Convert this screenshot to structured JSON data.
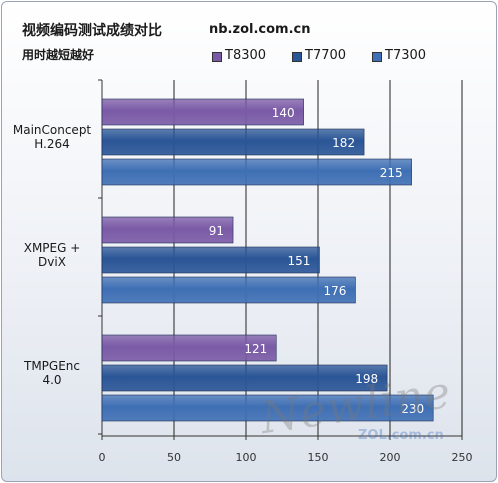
{
  "header": {
    "title": "视频编码测试成绩对比",
    "site": "nb.zol.com.cn",
    "subtitle": "用时越短越好"
  },
  "watermark": {
    "text": "Newline",
    "site": "ZOL.com.cn"
  },
  "colors": {
    "T8300": "#7a5aa6",
    "T7700": "#2a5596",
    "T7300": "#3f6fb4",
    "axis": "#333333",
    "grid": "#222222"
  },
  "chart_data": {
    "type": "bar",
    "orientation": "horizontal",
    "categories": [
      "MainConcept H.264",
      "XMPEG + DviX",
      "TMPGEnc 4.0"
    ],
    "category_lines": [
      [
        "MainConcept",
        "H.264"
      ],
      [
        "XMPEG +",
        "DviX"
      ],
      [
        "TMPGEnc",
        "4.0"
      ]
    ],
    "series": [
      {
        "name": "T8300",
        "values": [
          140,
          91,
          121
        ]
      },
      {
        "name": "T7700",
        "values": [
          182,
          151,
          198
        ]
      },
      {
        "name": "T7300",
        "values": [
          215,
          176,
          230
        ]
      }
    ],
    "xlim": [
      0,
      250
    ],
    "xticks": [
      0,
      50,
      100,
      150,
      200,
      250
    ],
    "grid": true,
    "legend": "top",
    "data_labels": true
  }
}
